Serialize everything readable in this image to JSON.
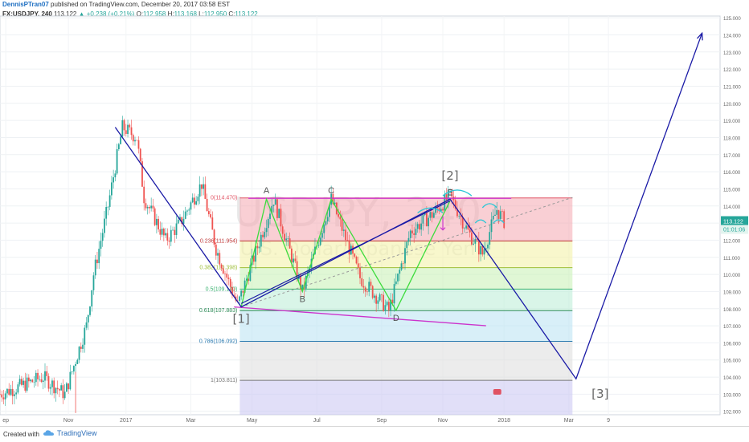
{
  "header": {
    "author": "DennisPTran07",
    "published": "published on TradingView.com, December 20, 2017 03:58 EST",
    "symbol": "FX:USDJPY, 240",
    "last": "113.122",
    "change": "▲ +0.238 (+0.21%)",
    "o_label": "O:",
    "o": "112.958",
    "h_label": "H:",
    "h": "113.168",
    "l_label": "L:",
    "l": "112.950",
    "c_label": "C:",
    "c": "113.122"
  },
  "watermark": {
    "symbol": "USDJPY, 240",
    "name": "U.S. Dollar/Japanese Yen"
  },
  "footer": {
    "created_with": "Created with",
    "brand": "TradingView"
  },
  "colors": {
    "wave": "#1a1aa6",
    "abc": "#3ddc3d",
    "trend": "#cc33cc",
    "arc": "#29c7d6",
    "bull": "#26a69a",
    "bear": "#ef5350",
    "price_tag": "#26a69a",
    "timer_tag": "#26a69a"
  },
  "chart_data": {
    "type": "candlestick",
    "symbol": "FX:USDJPY",
    "interval": "240",
    "ylim": [
      101.8,
      125.1
    ],
    "y_ticks": [
      "102.000",
      "103.000",
      "104.000",
      "105.000",
      "106.000",
      "107.000",
      "108.000",
      "109.000",
      "110.000",
      "111.000",
      "112.000",
      "113.000",
      "114.000",
      "115.000",
      "116.000",
      "117.000",
      "118.000",
      "119.000",
      "120.000",
      "121.000",
      "122.000",
      "123.000",
      "124.000",
      "125.000"
    ],
    "x_ticks": [
      "ep",
      "Nov",
      "2017",
      "Mar",
      "May",
      "Jul",
      "Sep",
      "Nov",
      "2018",
      "Mar",
      "9"
    ],
    "last_price": "113.122",
    "countdown": "01:01:06",
    "price_path": [
      {
        "t": 0.0,
        "p": 103.0
      },
      {
        "t": 0.06,
        "p": 104.0
      },
      {
        "t": 0.09,
        "p": 103.0
      },
      {
        "t": 0.12,
        "p": 107.0
      },
      {
        "t": 0.13,
        "p": 110.0
      },
      {
        "t": 0.15,
        "p": 114.0
      },
      {
        "t": 0.17,
        "p": 118.6
      },
      {
        "t": 0.19,
        "p": 118.0
      },
      {
        "t": 0.2,
        "p": 114.5
      },
      {
        "t": 0.23,
        "p": 112.0
      },
      {
        "t": 0.25,
        "p": 113.0
      },
      {
        "t": 0.28,
        "p": 115.3
      },
      {
        "t": 0.3,
        "p": 111.5
      },
      {
        "t": 0.33,
        "p": 108.2
      },
      {
        "t": 0.38,
        "p": 114.4
      },
      {
        "t": 0.42,
        "p": 109.0
      },
      {
        "t": 0.46,
        "p": 114.4
      },
      {
        "t": 0.5,
        "p": 109.8
      },
      {
        "t": 0.54,
        "p": 107.9
      },
      {
        "t": 0.57,
        "p": 112.5
      },
      {
        "t": 0.6,
        "p": 113.5
      },
      {
        "t": 0.625,
        "p": 114.6
      },
      {
        "t": 0.65,
        "p": 112.5
      },
      {
        "t": 0.67,
        "p": 111.2
      },
      {
        "t": 0.69,
        "p": 113.8
      },
      {
        "t": 0.7,
        "p": 113.1
      }
    ],
    "fibonacci": [
      {
        "ratio": "0",
        "price": 114.47,
        "label": "0(114.470)",
        "fill": "#f4a7b0",
        "line": "#e05263"
      },
      {
        "ratio": "0.236",
        "price": 111.954,
        "label": "0.236(111.954)",
        "fill": "#f3f0a3",
        "line": "#c23b3b"
      },
      {
        "ratio": "0.382",
        "price": 110.398,
        "label": "0.382(110.398)",
        "fill": "#c6f0b3",
        "line": "#9fbf3a"
      },
      {
        "ratio": "0.5",
        "price": 109.14,
        "label": "0.5(109.140)",
        "fill": "#b9ecd6",
        "line": "#3cb371"
      },
      {
        "ratio": "0.618",
        "price": 107.883,
        "label": "0.618(107.883)",
        "fill": "#b8e1f2",
        "line": "#2e8b57"
      },
      {
        "ratio": "0.786",
        "price": 106.092,
        "label": "0.786(106.092)",
        "fill": "#dcdcdc",
        "line": "#2a7ab0"
      },
      {
        "ratio": "1",
        "price": 103.811,
        "label": "1(103.811)",
        "fill": "#c9c5f2",
        "line": "#777777"
      }
    ],
    "waves": [
      {
        "name": "[1]",
        "t": 0.335,
        "p": 108.1
      },
      {
        "name": "[2]",
        "t": 0.625,
        "p": 114.4
      },
      {
        "name": "[3]",
        "t": 0.8,
        "p": 103.9
      }
    ],
    "wave_path": [
      {
        "t": 0.16,
        "p": 118.6
      },
      {
        "t": 0.335,
        "p": 108.1
      },
      {
        "t": 0.625,
        "p": 114.4
      },
      {
        "t": 0.8,
        "p": 103.9
      },
      {
        "t": 0.975,
        "p": 124.1
      }
    ],
    "abcde": [
      {
        "label": "A",
        "t": 0.37,
        "p": 114.4
      },
      {
        "label": "B",
        "t": 0.42,
        "p": 109.0
      },
      {
        "label": "C",
        "t": 0.46,
        "p": 114.4
      },
      {
        "label": "D",
        "t": 0.55,
        "p": 107.9
      },
      {
        "label": "E",
        "t": 0.625,
        "p": 114.3
      }
    ]
  }
}
